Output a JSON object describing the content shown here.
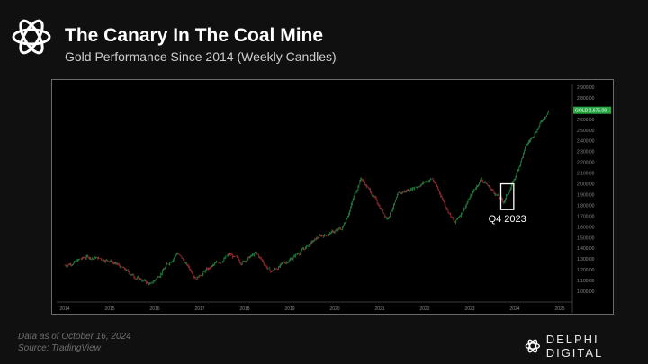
{
  "header": {
    "title": "The Canary In The Coal Mine",
    "subtitle": "Gold Performance Since 2014 (Weekly Candles)"
  },
  "footer": {
    "note_date": "Data as of October 16, 2024",
    "note_source": "Source: TradingView",
    "brand": "DELPHI DIGITAL"
  },
  "colors": {
    "background": "#101010",
    "candle_up": "#2e9e4f",
    "candle_down": "#b0343a",
    "tag_bg": "#28a745"
  },
  "chart_data": {
    "type": "line",
    "title": "Gold Performance Since 2014 (Weekly Candles)",
    "series": [
      {
        "name": "GOLD",
        "x": [
          "2014-01",
          "2014-07",
          "2015-01",
          "2015-07",
          "2015-12",
          "2016-07",
          "2016-12",
          "2017-09",
          "2017-12",
          "2018-04",
          "2018-08",
          "2019-02",
          "2019-09",
          "2020-03",
          "2020-08",
          "2021-03",
          "2021-06",
          "2022-03",
          "2022-09",
          "2023-04",
          "2023-10",
          "2024-01",
          "2024-04",
          "2024-10"
        ],
        "values": [
          1240,
          1320,
          1290,
          1150,
          1060,
          1360,
          1130,
          1340,
          1270,
          1350,
          1180,
          1320,
          1510,
          1580,
          2060,
          1680,
          1900,
          2050,
          1630,
          2050,
          1830,
          2050,
          2350,
          2685
        ]
      }
    ],
    "x_ticks": [
      "2014",
      "2015",
      "2016",
      "2017",
      "2018",
      "2019",
      "2020",
      "2021",
      "2022",
      "2023",
      "2024",
      "2025"
    ],
    "y_ticks": [
      "1,000.00",
      "1,100.00",
      "1,200.00",
      "1,300.00",
      "1,400.00",
      "1,500.00",
      "1,600.00",
      "1,700.00",
      "1,800.00",
      "1,900.00",
      "2,000.00",
      "2,100.00",
      "2,200.00",
      "2,300.00",
      "2,400.00",
      "2,500.00",
      "2,600.00",
      "2,700.00",
      "2,800.00",
      "2,900.00"
    ],
    "ylim": [
      1000,
      2900
    ],
    "price_tag": {
      "label": "GOLD",
      "value": "2,675.08"
    },
    "annotation": {
      "label": "Q4 2023",
      "x_start": "2023-10",
      "x_end": "2023-12"
    }
  }
}
